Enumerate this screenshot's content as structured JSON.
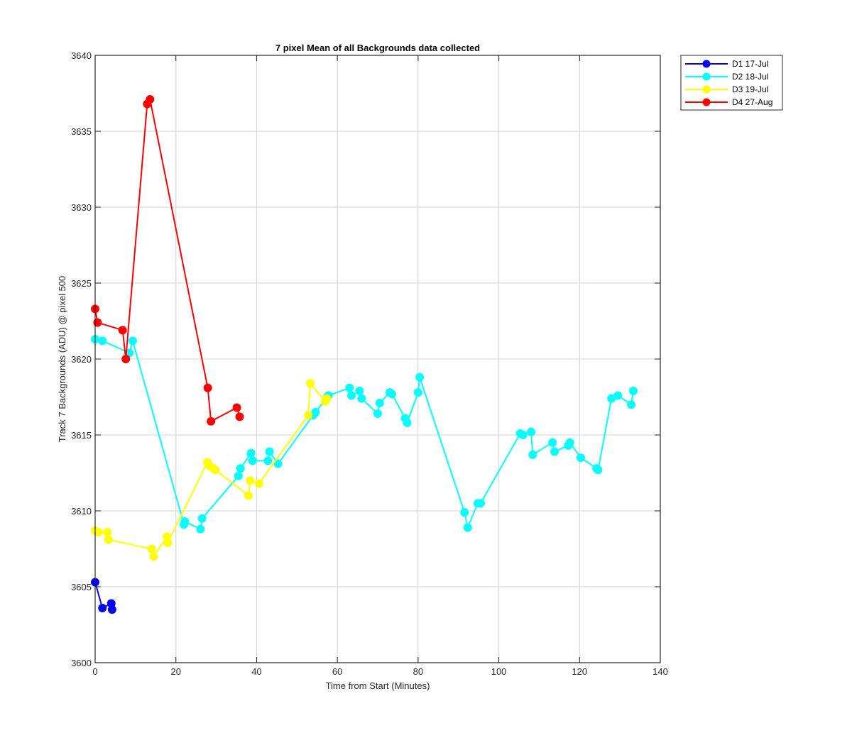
{
  "chart_data": {
    "type": "line",
    "title": "7 pixel Mean of all Backgrounds data collected",
    "xlabel": "Time from Start (Minutes)",
    "ylabel": "Track 7 Backgrounds (ADU) @ pixel 500",
    "xlim": [
      0,
      140
    ],
    "ylim": [
      3600,
      3640
    ],
    "xticks": [
      0,
      20,
      40,
      60,
      80,
      100,
      120,
      140
    ],
    "yticks": [
      3600,
      3605,
      3610,
      3615,
      3620,
      3625,
      3630,
      3635,
      3640
    ],
    "grid": true,
    "legend_position": "outside-top-right",
    "series": [
      {
        "name": "D1 17-Jul",
        "color": "#0000ff",
        "x": [
          0.0,
          1.8,
          4.0,
          4.2
        ],
        "y": [
          3605.3,
          3603.6,
          3603.9,
          3603.5
        ]
      },
      {
        "name": "D2 18-Jul",
        "color": "#00ffff",
        "x": [
          0.0,
          1.8,
          8.5,
          9.3,
          22.0,
          22.2,
          26.1,
          26.5,
          35.5,
          36.0,
          38.6,
          39.0,
          42.8,
          43.2,
          45.3,
          54.0,
          54.6,
          57.5,
          57.8,
          63.0,
          63.5,
          65.5,
          66.0,
          70.0,
          70.5,
          73.0,
          73.5,
          76.8,
          77.3,
          80.0,
          80.4,
          91.5,
          92.3,
          94.8,
          95.5,
          105.3,
          106.0,
          108.0,
          108.4,
          113.3,
          113.8,
          117.2,
          117.6,
          120.3,
          124.2,
          124.6,
          127.9,
          129.5,
          132.8,
          133.3
        ],
        "y": [
          3621.3,
          3621.2,
          3620.4,
          3621.2,
          3609.1,
          3609.3,
          3608.8,
          3609.5,
          3612.3,
          3612.8,
          3613.8,
          3613.3,
          3613.3,
          3613.9,
          3613.1,
          3616.3,
          3616.5,
          3617.5,
          3617.6,
          3618.1,
          3617.6,
          3617.9,
          3617.4,
          3616.4,
          3617.1,
          3617.8,
          3617.7,
          3616.1,
          3615.8,
          3617.8,
          3618.8,
          3609.9,
          3608.9,
          3610.5,
          3610.5,
          3615.1,
          3615.0,
          3615.2,
          3613.7,
          3614.5,
          3613.9,
          3614.3,
          3614.5,
          3613.5,
          3612.8,
          3612.7,
          3617.4,
          3617.6,
          3617.0,
          3617.9
        ]
      },
      {
        "name": "D3 19-Jul",
        "color": "#ffff00",
        "x": [
          0.0,
          0.8,
          3.0,
          3.3,
          14.0,
          14.5,
          17.8,
          18.0,
          27.8,
          28.2,
          29.3,
          29.8,
          38.0,
          38.4,
          40.6,
          52.8,
          53.3,
          57.0,
          57.4
        ],
        "y": [
          3608.7,
          3608.6,
          3608.6,
          3608.1,
          3607.5,
          3607.0,
          3608.3,
          3607.9,
          3613.2,
          3613.0,
          3612.8,
          3612.7,
          3611.0,
          3612.0,
          3611.8,
          3616.3,
          3618.4,
          3617.2,
          3617.4
        ]
      },
      {
        "name": "D4 27-Aug",
        "color": "#ff0000",
        "x": [
          0.0,
          0.6,
          6.8,
          7.6,
          12.9,
          13.6,
          27.9,
          28.7,
          35.1,
          35.8
        ],
        "y": [
          3623.3,
          3622.4,
          3621.9,
          3620.0,
          3636.8,
          3637.1,
          3618.1,
          3615.9,
          3616.8,
          3616.2
        ]
      }
    ]
  }
}
